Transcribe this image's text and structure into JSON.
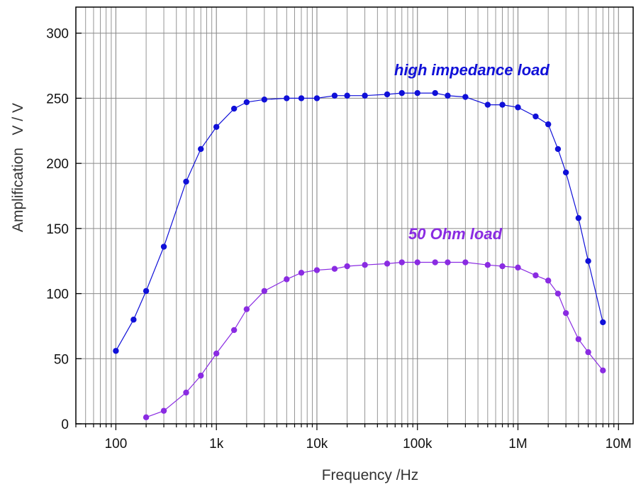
{
  "chart_data": {
    "type": "line",
    "xscale": "log",
    "xlim": [
      40,
      14000000
    ],
    "ylim": [
      0,
      320
    ],
    "xlabel": "Frequency /Hz",
    "ylabel": "Amplification   V / V",
    "x_ticks": [
      {
        "value": 100,
        "label": "100"
      },
      {
        "value": 1000,
        "label": "1k"
      },
      {
        "value": 10000,
        "label": "10k"
      },
      {
        "value": 100000,
        "label": "100k"
      },
      {
        "value": 1000000,
        "label": "1M"
      },
      {
        "value": 10000000,
        "label": "10M"
      }
    ],
    "y_ticks": [
      {
        "value": 0,
        "label": "0"
      },
      {
        "value": 50,
        "label": "50"
      },
      {
        "value": 100,
        "label": "100"
      },
      {
        "value": 150,
        "label": "150"
      },
      {
        "value": 200,
        "label": "200"
      },
      {
        "value": 250,
        "label": "250"
      },
      {
        "value": 300,
        "label": "300"
      }
    ],
    "grid": true,
    "series": [
      {
        "name": "high impedance load",
        "color": "#1010d8",
        "x": [
          100,
          150,
          200,
          300,
          500,
          700,
          1000,
          1500,
          2000,
          3000,
          5000,
          7000,
          10000,
          15000,
          20000,
          30000,
          50000,
          70000,
          100000,
          150000,
          200000,
          300000,
          500000,
          700000,
          1000000,
          1500000,
          2000000,
          2500000,
          3000000,
          4000000,
          5000000,
          7000000
        ],
        "y": [
          56,
          80,
          102,
          136,
          186,
          211,
          228,
          242,
          247,
          249,
          250,
          250,
          250,
          252,
          252,
          252,
          253,
          254,
          254,
          254,
          252,
          251,
          245,
          245,
          243,
          236,
          230,
          211,
          193,
          158,
          125,
          78
        ]
      },
      {
        "name": "50 Ohm load",
        "color": "#8a2be2",
        "x": [
          200,
          300,
          500,
          700,
          1000,
          1500,
          2000,
          3000,
          5000,
          7000,
          10000,
          15000,
          20000,
          30000,
          50000,
          70000,
          100000,
          150000,
          200000,
          300000,
          500000,
          700000,
          1000000,
          1500000,
          2000000,
          2500000,
          3000000,
          4000000,
          5000000,
          7000000
        ],
        "y": [
          5,
          10,
          24,
          37,
          54,
          72,
          88,
          102,
          111,
          116,
          118,
          119,
          121,
          122,
          123,
          124,
          124,
          124,
          124,
          124,
          122,
          121,
          120,
          114,
          110,
          100,
          85,
          65,
          55,
          41
        ]
      }
    ]
  }
}
